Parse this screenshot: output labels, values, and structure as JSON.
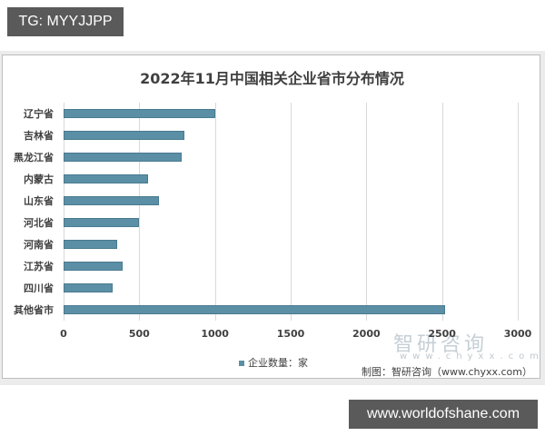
{
  "overlay": {
    "top_tag": "TG: MYYJJPP",
    "bottom_tag": "www.worldofshane.com"
  },
  "chart": {
    "title": "2022年11月中国相关企业省市分布情况",
    "legend": "企业数量：家",
    "source": "制图：智研咨询（www.chyxx.com）",
    "watermark": "智研咨询",
    "watermark_sub": "www.chyxx.com",
    "ticks": [
      "0",
      "500",
      "1000",
      "1500",
      "2000",
      "2500",
      "3000"
    ],
    "categories": [
      "辽宁省",
      "吉林省",
      "黑龙江省",
      "内蒙古",
      "山东省",
      "河北省",
      "河南省",
      "江苏省",
      "四川省",
      "其他省市"
    ]
  },
  "chart_data": {
    "type": "bar",
    "orientation": "horizontal",
    "title": "2022年11月中国相关企业省市分布情况",
    "categories": [
      "辽宁省",
      "吉林省",
      "黑龙江省",
      "内蒙古",
      "山东省",
      "河北省",
      "河南省",
      "江苏省",
      "四川省",
      "其他省市"
    ],
    "series": [
      {
        "name": "企业数量：家",
        "color": "#5b8fa6",
        "values": [
          1000,
          800,
          780,
          560,
          630,
          500,
          355,
          390,
          325,
          2520
        ]
      }
    ],
    "xlabel": "",
    "ylabel": "",
    "xlim": [
      0,
      3000
    ],
    "xticks": [
      0,
      500,
      1000,
      1500,
      2000,
      2500,
      3000
    ],
    "grid": "vertical",
    "legend_position": "bottom",
    "source": "制图：智研咨询（www.chyxx.com）"
  }
}
